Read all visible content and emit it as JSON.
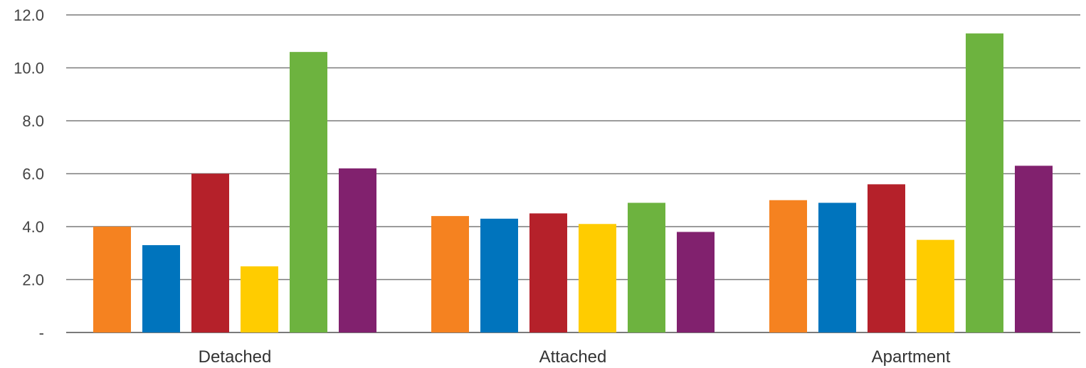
{
  "chart_data": {
    "type": "bar",
    "categories": [
      "Detached",
      "Attached",
      "Apartment"
    ],
    "series": [
      {
        "color": "#f58220",
        "values": [
          4.0,
          4.4,
          5.0
        ]
      },
      {
        "color": "#0074bd",
        "values": [
          3.3,
          4.3,
          4.9
        ]
      },
      {
        "color": "#b5212a",
        "values": [
          6.0,
          4.5,
          5.6
        ]
      },
      {
        "color": "#ffcc00",
        "values": [
          2.5,
          4.1,
          3.5
        ]
      },
      {
        "color": "#6db33f",
        "values": [
          10.6,
          4.9,
          11.3
        ]
      },
      {
        "color": "#81216e",
        "values": [
          6.2,
          3.8,
          6.3
        ]
      }
    ],
    "ylim": [
      0,
      12
    ],
    "yticks": [
      0,
      2,
      4,
      6,
      8,
      10,
      12
    ],
    "ytick_labels": [
      "-",
      "2.0",
      "4.0",
      "6.0",
      "8.0",
      "10.0",
      "12.0"
    ],
    "grid": true,
    "legend": "none"
  }
}
